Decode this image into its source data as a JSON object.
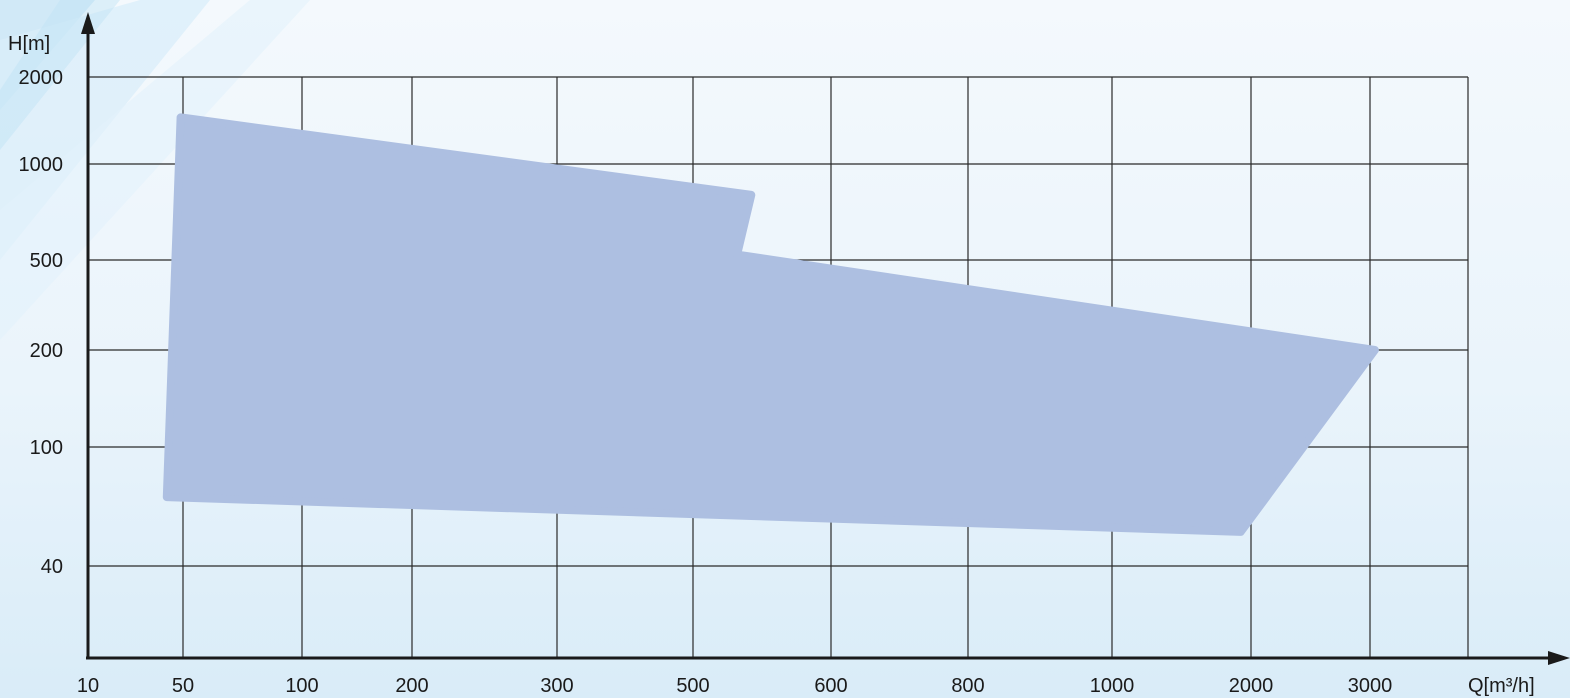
{
  "chart_data": {
    "type": "area",
    "xlabel": "Q[m³/h]",
    "ylabel": "H[m]",
    "x_ticks": [
      "10",
      "50",
      "100",
      "200",
      "300",
      "500",
      "600",
      "800",
      "1000",
      "2000",
      "3000"
    ],
    "y_ticks": [
      "40",
      "100",
      "200",
      "500",
      "1000",
      "2000"
    ],
    "grid": true,
    "fill_color": "#adbfe1",
    "region": [
      {
        "q": 48,
        "h": 1450
      },
      {
        "q": 540,
        "h": 800
      },
      {
        "q": 530,
        "h": 520
      },
      {
        "q": 3050,
        "h": 200
      },
      {
        "q": 1900,
        "h": 52
      },
      {
        "q": 38,
        "h": 68
      }
    ]
  }
}
